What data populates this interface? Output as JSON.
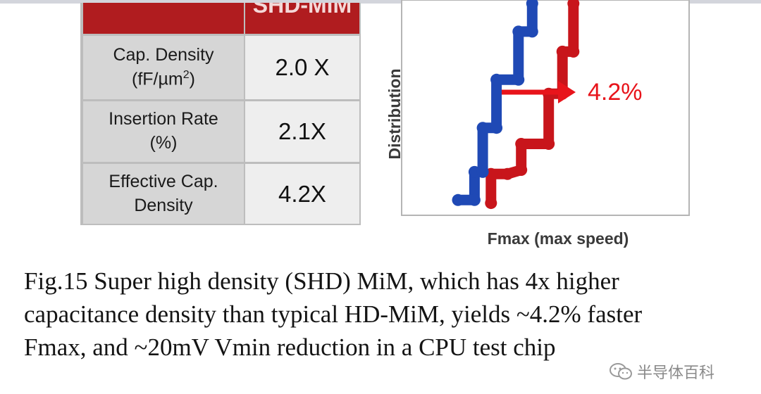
{
  "table": {
    "header": "SHD-MiM",
    "rows": [
      {
        "label_line1": "Cap. Density",
        "label_line2_prefix": "(fF/µm",
        "label_line2_sup": "2",
        "label_line2_suffix": ")",
        "value": "2.0 X"
      },
      {
        "label_line1": "Insertion Rate",
        "label_line2": "(%)",
        "value": "2.1X"
      },
      {
        "label_line1": "Effective Cap.",
        "label_line2": "Density",
        "value": "4.2X"
      }
    ]
  },
  "chart_data": {
    "type": "line",
    "xlabel": "Fmax (max speed)",
    "ylabel": "Distribution",
    "annotation": "4.2%",
    "series": [
      {
        "color": "#c8151b",
        "points": [
          [
            1.2,
            0.05
          ],
          [
            1.2,
            1.5
          ],
          [
            1.8,
            1.5
          ],
          [
            2.3,
            1.7
          ],
          [
            2.3,
            3.0
          ],
          [
            3.3,
            3.0
          ],
          [
            3.3,
            5.5
          ],
          [
            3.8,
            5.5
          ],
          [
            3.8,
            7.6
          ],
          [
            4.2,
            7.6
          ],
          [
            4.2,
            10
          ]
        ]
      },
      {
        "color": "#1f49b5",
        "points": [
          [
            0,
            0.2
          ],
          [
            0.6,
            0.2
          ],
          [
            0.6,
            1.6
          ],
          [
            0.9,
            1.6
          ],
          [
            0.9,
            3.8
          ],
          [
            1.4,
            3.8
          ],
          [
            1.4,
            6.2
          ],
          [
            2.2,
            6.2
          ],
          [
            2.2,
            8.6
          ],
          [
            2.7,
            8.6
          ],
          [
            2.7,
            10
          ]
        ]
      }
    ],
    "colors": {
      "red": "#c8151b",
      "blue": "#1f49b5",
      "arrow": "#e8141b"
    }
  },
  "caption": {
    "line1": "Fig.15 Super high density (SHD) MiM, which has 4x higher",
    "line2": "capacitance density than typical HD-MiM, yields ~4.2% faster",
    "line3": "Fmax, and ~20mV Vmin reduction in a CPU test chip"
  },
  "watermark": {
    "text": "半导体百科",
    "icon": "wechat-icon"
  }
}
